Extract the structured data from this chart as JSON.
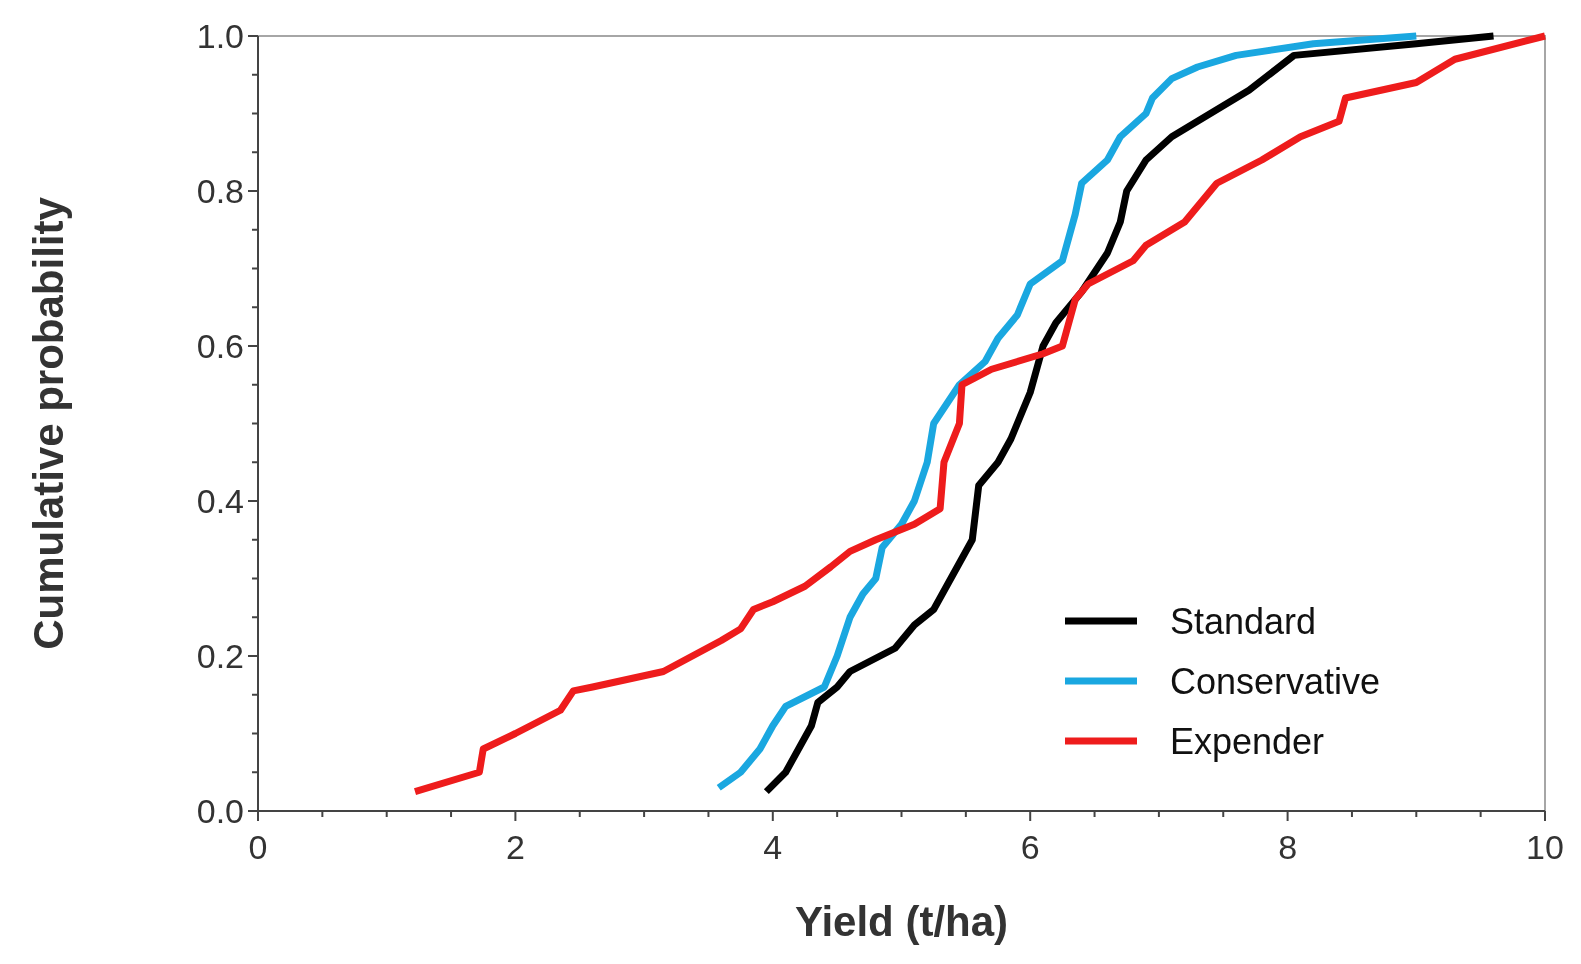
{
  "chart_data": {
    "type": "line",
    "xlabel": "Yield (t/ha)",
    "ylabel": "Cumulative probability",
    "xlim": [
      0,
      10
    ],
    "ylim": [
      0,
      1
    ],
    "xticks": [
      0,
      {
        "value": 0.5,
        "label": null
      },
      2,
      {
        "value": 1,
        "label": null
      },
      {
        "value": 1.5,
        "label": null
      },
      {
        "value": 2.5,
        "label": null
      },
      {
        "value": 3,
        "label": null
      },
      {
        "value": 3.5,
        "label": null
      },
      4,
      {
        "value": 4.5,
        "label": null
      },
      {
        "value": 5,
        "label": null
      },
      {
        "value": 5.5,
        "label": null
      },
      6,
      {
        "value": 6.5,
        "label": null
      },
      {
        "value": 7,
        "label": null
      },
      {
        "value": 7.5,
        "label": null
      },
      8,
      {
        "value": 8.5,
        "label": null
      },
      {
        "value": 9,
        "label": null
      },
      {
        "value": 9.5,
        "label": null
      },
      10
    ],
    "yticks": [
      {
        "value": 0,
        "label": "0.0"
      },
      0.2,
      0.4,
      0.6,
      0.8,
      {
        "value": 1,
        "label": "1.0"
      },
      {
        "value": 0.05,
        "label": null
      },
      {
        "value": 0.1,
        "label": null
      },
      {
        "value": 0.15,
        "label": null
      },
      {
        "value": 0.25,
        "label": null
      },
      {
        "value": 0.3,
        "label": null
      },
      {
        "value": 0.35,
        "label": null
      },
      {
        "value": 0.45,
        "label": null
      },
      {
        "value": 0.5,
        "label": null
      },
      {
        "value": 0.55,
        "label": null
      },
      {
        "value": 0.65,
        "label": null
      },
      {
        "value": 0.7,
        "label": null
      },
      {
        "value": 0.75,
        "label": null
      },
      {
        "value": 0.85,
        "label": null
      },
      {
        "value": 0.9,
        "label": null
      },
      {
        "value": 0.95,
        "label": null
      }
    ],
    "grid": false,
    "legend": "bottom right",
    "marker": "none",
    "line_style": "solid",
    "series": [
      {
        "name": "Standard",
        "color": "#000000",
        "x": [
          3.95,
          4.1,
          4.2,
          4.3,
          4.35,
          4.5,
          4.6,
          4.95,
          5.1,
          5.25,
          5.35,
          5.45,
          5.55,
          5.6,
          5.75,
          5.85,
          6.0,
          6.1,
          6.2,
          6.4,
          6.6,
          6.7,
          6.75,
          6.9,
          7.1,
          7.3,
          7.7,
          8.05,
          9.0,
          9.6
        ],
        "values": [
          0.025,
          0.05,
          0.08,
          0.11,
          0.14,
          0.16,
          0.18,
          0.21,
          0.24,
          0.26,
          0.29,
          0.32,
          0.35,
          0.42,
          0.45,
          0.48,
          0.54,
          0.6,
          0.63,
          0.67,
          0.72,
          0.76,
          0.8,
          0.84,
          0.87,
          0.89,
          0.93,
          0.975,
          0.99,
          1.0
        ]
      },
      {
        "name": "Conservative",
        "color": "#1aa7e0",
        "x": [
          3.58,
          3.75,
          3.9,
          4.0,
          4.1,
          4.4,
          4.5,
          4.6,
          4.7,
          4.8,
          4.85,
          5.0,
          5.1,
          5.2,
          5.25,
          5.45,
          5.65,
          5.75,
          5.9,
          6.0,
          6.25,
          6.35,
          6.4,
          6.6,
          6.7,
          6.9,
          6.95,
          7.1,
          7.3,
          7.6,
          8.2,
          9.0
        ],
        "values": [
          0.03,
          0.05,
          0.08,
          0.11,
          0.135,
          0.16,
          0.2,
          0.25,
          0.28,
          0.3,
          0.34,
          0.37,
          0.4,
          0.45,
          0.5,
          0.55,
          0.58,
          0.61,
          0.64,
          0.68,
          0.71,
          0.77,
          0.81,
          0.84,
          0.87,
          0.9,
          0.92,
          0.945,
          0.96,
          0.975,
          0.99,
          1.0
        ]
      },
      {
        "name": "Expender",
        "color": "#ee1c1c",
        "x": [
          1.22,
          1.72,
          1.75,
          2.0,
          2.35,
          2.45,
          2.6,
          3.15,
          3.6,
          3.75,
          3.85,
          4.0,
          4.25,
          4.45,
          4.6,
          4.8,
          5.1,
          5.3,
          5.33,
          5.45,
          5.47,
          5.7,
          6.1,
          6.25,
          6.35,
          6.45,
          6.8,
          6.9,
          7.2,
          7.45,
          7.8,
          8.1,
          8.4,
          8.45,
          9.0,
          9.3,
          10.0
        ],
        "values": [
          0.025,
          0.05,
          0.08,
          0.1,
          0.13,
          0.155,
          0.16,
          0.18,
          0.22,
          0.235,
          0.26,
          0.27,
          0.29,
          0.315,
          0.335,
          0.35,
          0.37,
          0.39,
          0.45,
          0.5,
          0.55,
          0.57,
          0.59,
          0.6,
          0.66,
          0.68,
          0.71,
          0.73,
          0.76,
          0.81,
          0.84,
          0.87,
          0.89,
          0.92,
          0.94,
          0.97,
          1.0
        ]
      }
    ]
  }
}
